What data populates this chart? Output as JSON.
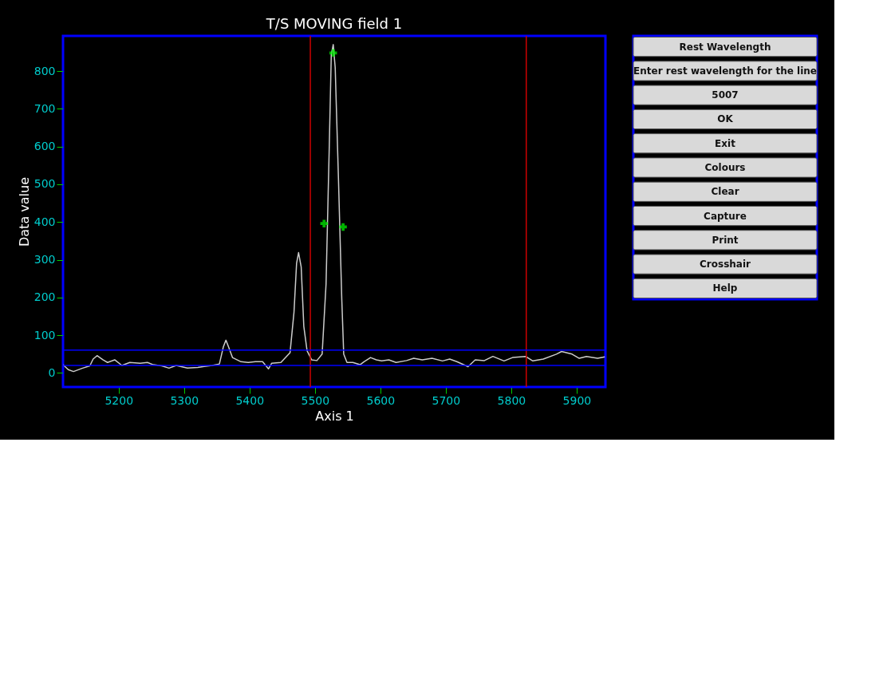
{
  "chart_data": {
    "type": "line",
    "title": "T/S MOVING field 1",
    "xlabel": "Axis 1",
    "ylabel": "Data value",
    "xlim": [
      5115,
      5944
    ],
    "ylim": [
      -37,
      893
    ],
    "xticks": [
      5200,
      5300,
      5400,
      5500,
      5600,
      5700,
      5800,
      5900
    ],
    "yticks": [
      0,
      100,
      200,
      300,
      400,
      500,
      600,
      700,
      800
    ],
    "grid": false,
    "series": [
      {
        "color": "#cccccc",
        "marker": "none",
        "line_style": "solid",
        "x": [
          5115,
          5123,
          5131,
          5145,
          5156,
          5161,
          5167,
          5176,
          5183,
          5194,
          5205,
          5217,
          5233,
          5244,
          5253,
          5266,
          5277,
          5288,
          5305,
          5321,
          5343,
          5354,
          5360,
          5364,
          5368,
          5374,
          5387,
          5398,
          5409,
          5420,
          5429,
          5434,
          5448,
          5462,
          5468,
          5472,
          5475,
          5479,
          5483,
          5488,
          5495,
          5503,
          5511,
          5517,
          5522,
          5525,
          5528,
          5531,
          5536,
          5541,
          5544,
          5549,
          5558,
          5569,
          5575,
          5585,
          5594,
          5602,
          5613,
          5624,
          5640,
          5651,
          5664,
          5679,
          5695,
          5706,
          5717,
          5734,
          5745,
          5759,
          5772,
          5789,
          5802,
          5822,
          5833,
          5849,
          5869,
          5877,
          5893,
          5904,
          5915,
          5932,
          5943
        ],
        "values": [
          22,
          9,
          4,
          13,
          19,
          37,
          46,
          35,
          28,
          35,
          20,
          28,
          26,
          28,
          22,
          19,
          13,
          20,
          13,
          15,
          20,
          24,
          69,
          87,
          69,
          41,
          30,
          28,
          30,
          30,
          11,
          26,
          28,
          54,
          161,
          291,
          319,
          281,
          124,
          59,
          35,
          33,
          50,
          235,
          606,
          843,
          870,
          809,
          513,
          198,
          50,
          28,
          28,
          22,
          30,
          41,
          35,
          32,
          35,
          28,
          33,
          39,
          35,
          39,
          32,
          37,
          30,
          17,
          35,
          33,
          44,
          32,
          41,
          44,
          32,
          37,
          50,
          57,
          50,
          39,
          44,
          39,
          43
        ]
      },
      {
        "type": "scatter",
        "color": "#00ff00",
        "marker": "cross",
        "x": [
          5528,
          5514,
          5543
        ],
        "values": [
          848,
          396,
          387
        ]
      }
    ],
    "ref_lines": [
      {
        "axis": "x",
        "value": 5493,
        "color": "#cc0000",
        "line_style": "solid"
      },
      {
        "axis": "x",
        "value": 5823,
        "color": "#cc0000",
        "line_style": "solid"
      },
      {
        "axis": "y",
        "value": 20,
        "color": "#0000ff",
        "line_style": "solid"
      },
      {
        "axis": "y",
        "value": 61,
        "color": "#0000ff",
        "line_style": "solid"
      }
    ],
    "annotations": [
      "Rest Wavelength",
      "Enter rest wavelength for the line",
      "5007",
      "OK",
      "Exit",
      "Colours",
      "Clear",
      "Capture",
      "Print",
      "Crosshair",
      "Help"
    ]
  }
}
